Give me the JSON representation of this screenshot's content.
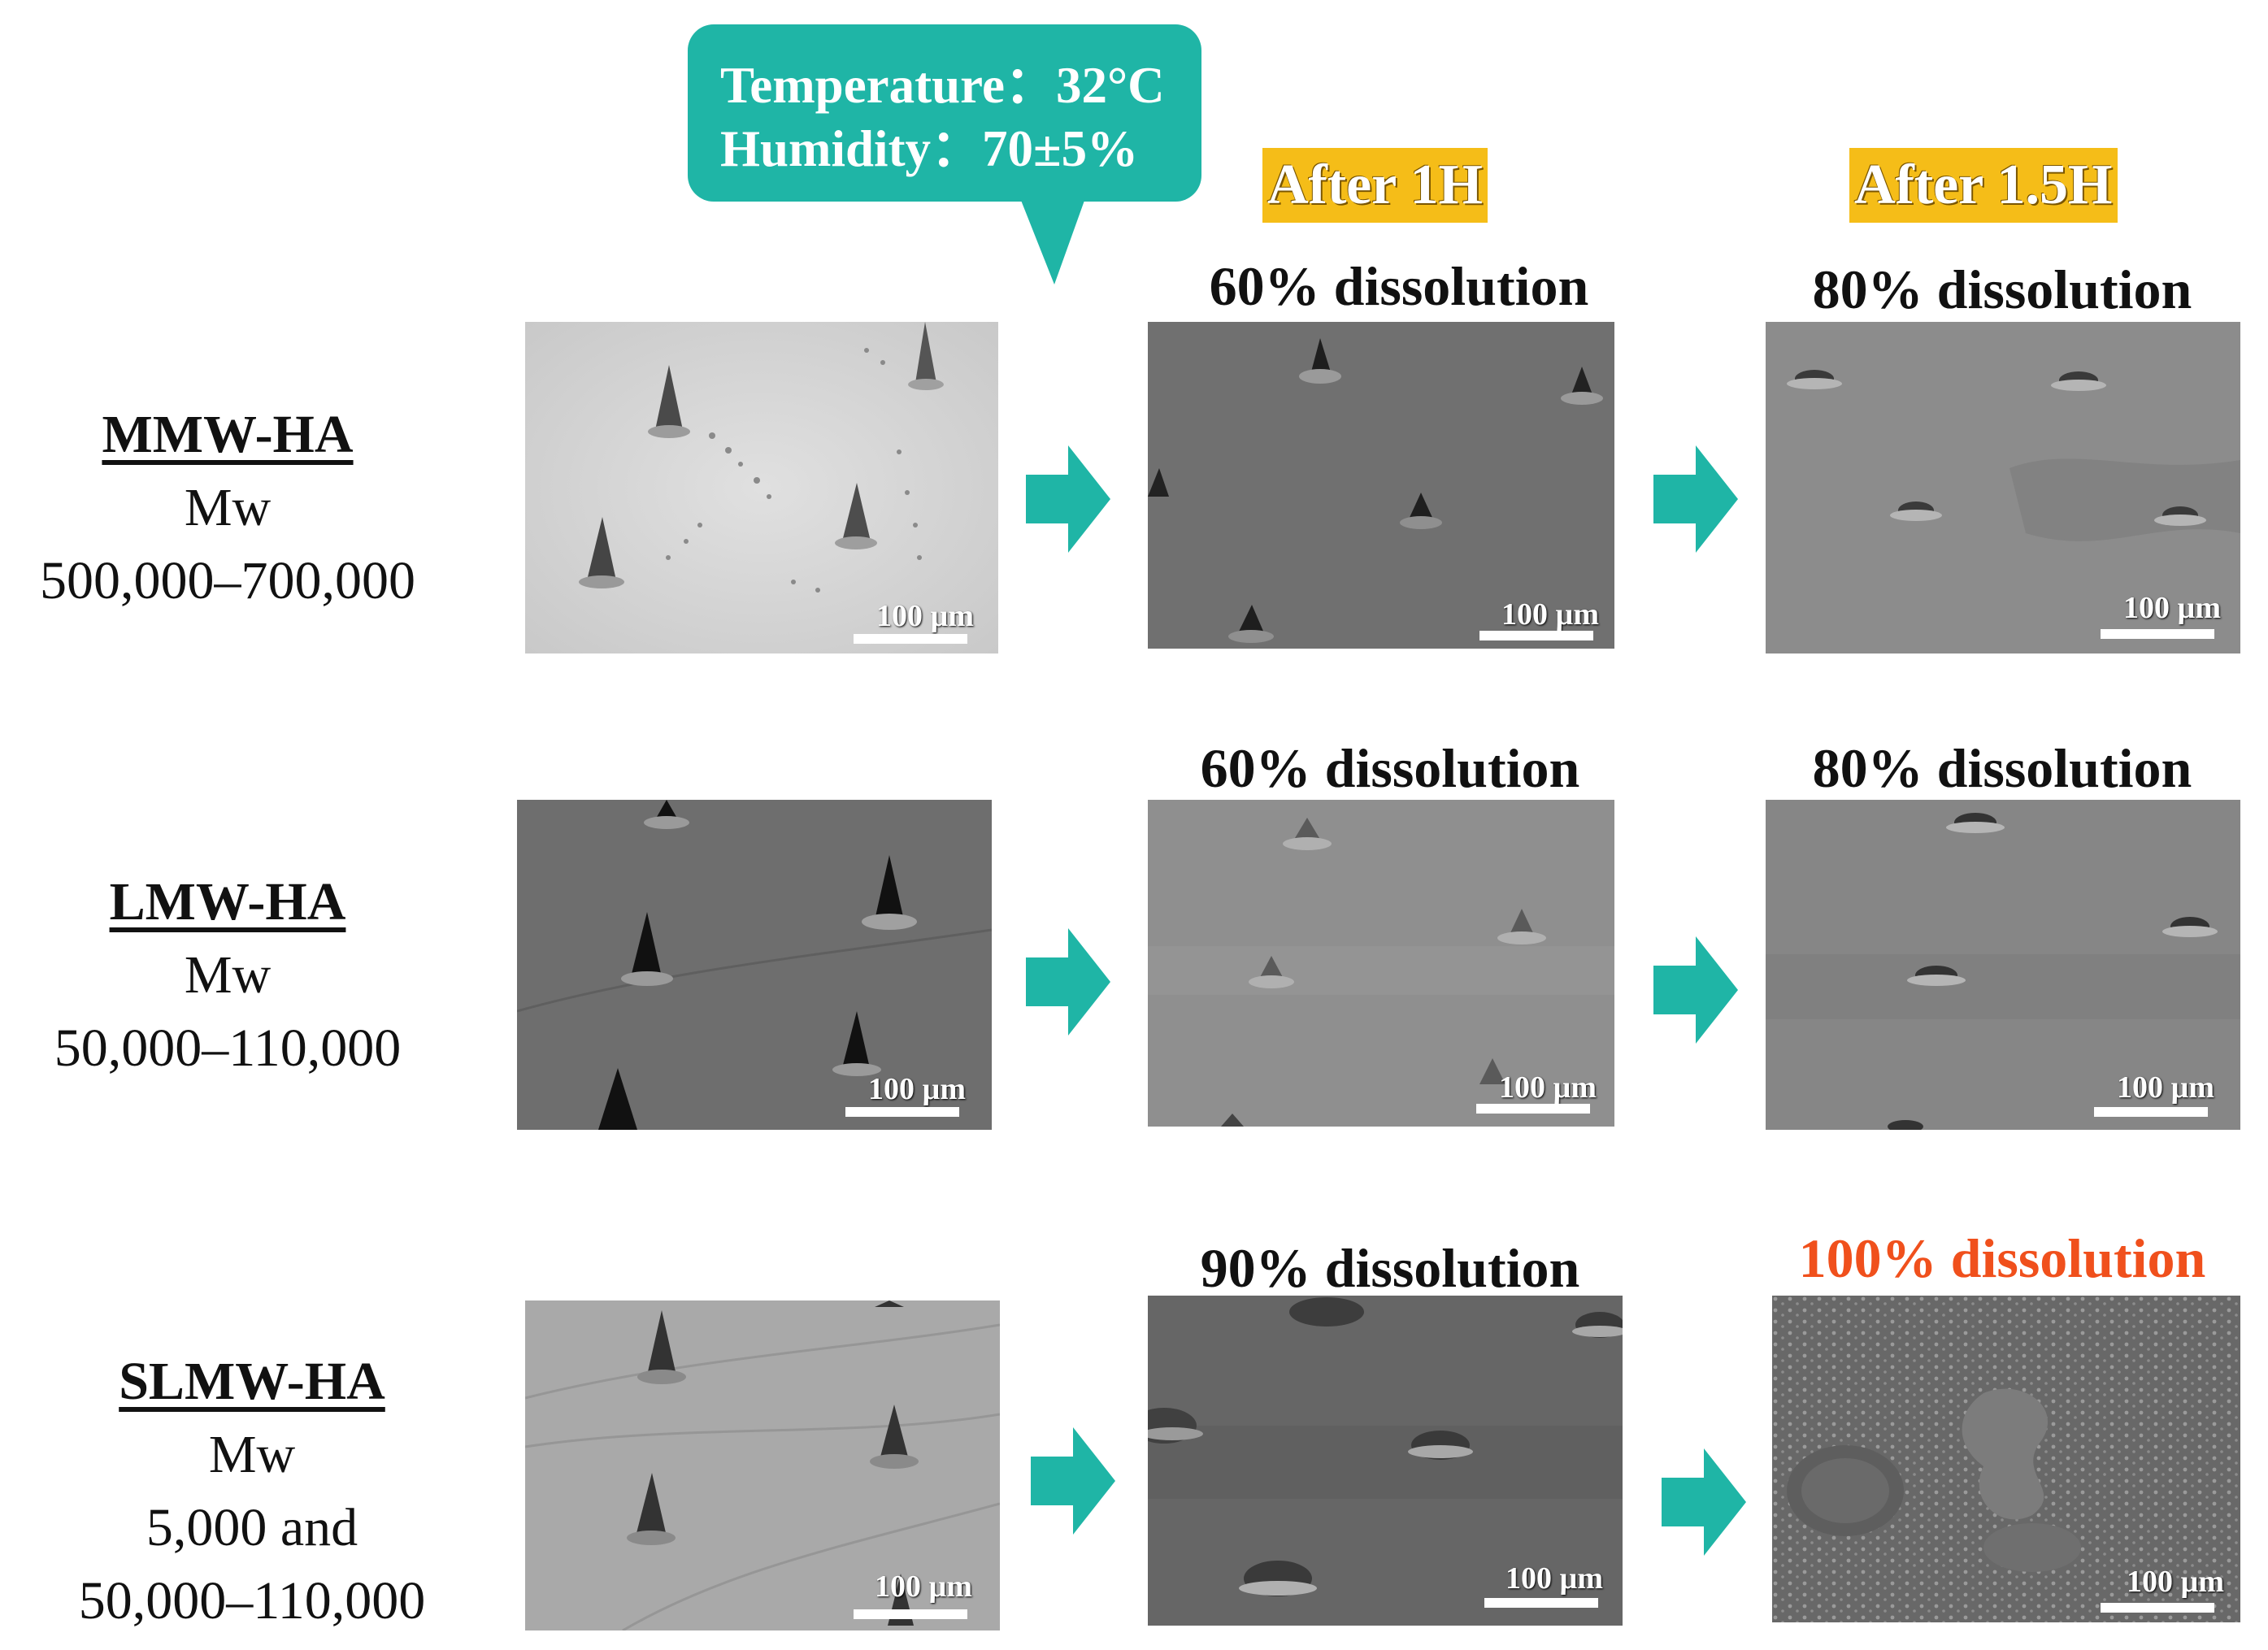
{
  "colors": {
    "teal": "#1fb5a6",
    "badge": "#f5bd18",
    "highlight": "#f0501c"
  },
  "conditions": {
    "temperature": "Temperature：32°C",
    "humidity": "Humidity：70±5%"
  },
  "time_points": [
    "After 1H",
    "After 1.5H"
  ],
  "rows": [
    {
      "name": "MMW-HA",
      "mw_label": "Mw",
      "mw_lines": [
        "500,000–700,000"
      ],
      "dissolution_1h": "60% dissolution",
      "dissolution_1_5h": "80% dissolution"
    },
    {
      "name": "LMW-HA",
      "mw_label": "Mw",
      "mw_lines": [
        "50,000–110,000"
      ],
      "dissolution_1h": "60% dissolution",
      "dissolution_1_5h": "80% dissolution"
    },
    {
      "name": "SLMW-HA",
      "mw_label": "Mw",
      "mw_lines": [
        "5,000 and",
        "50,000–110,000"
      ],
      "dissolution_1h": "90% dissolution",
      "dissolution_1_5h": "100% dissolution"
    }
  ],
  "scale_bar": "100 µm",
  "icons": [
    "right-arrow-icon",
    "callout-pointer-icon"
  ]
}
